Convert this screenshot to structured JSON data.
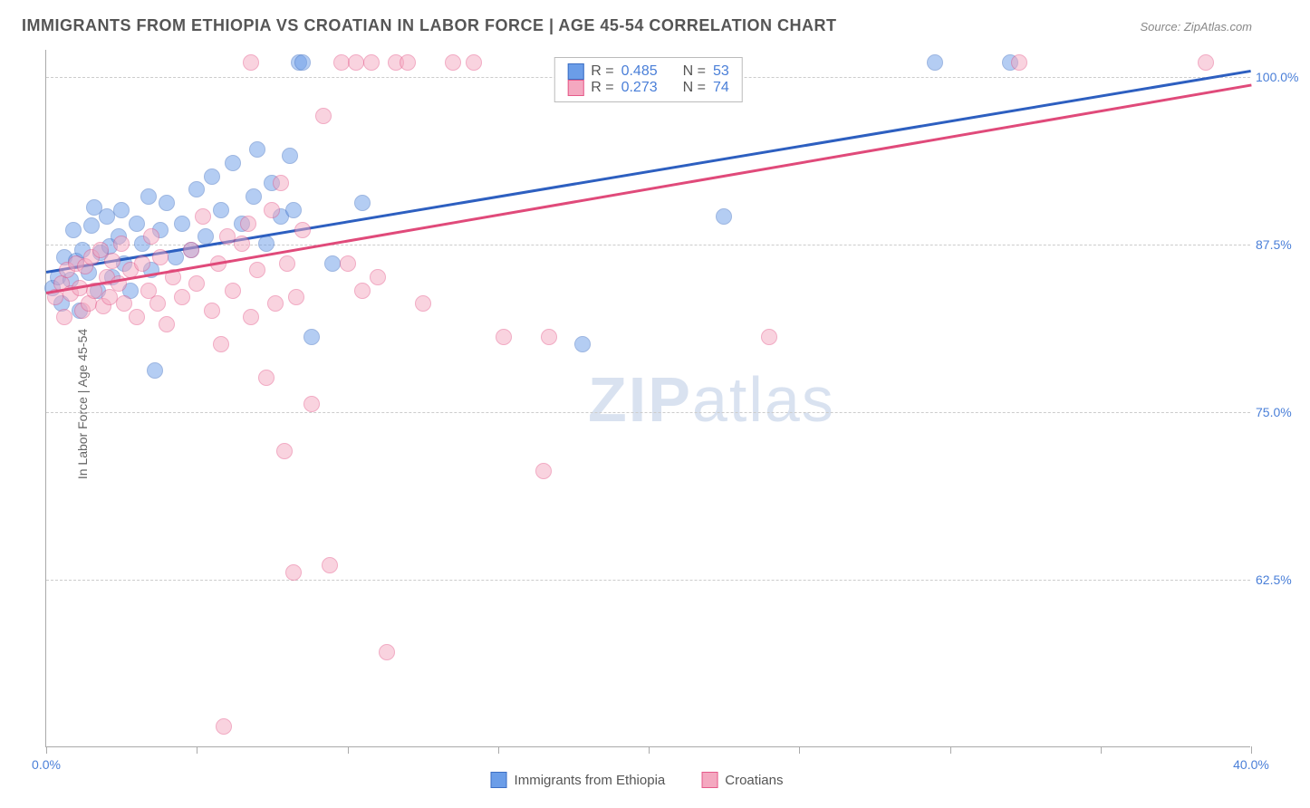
{
  "title": "IMMIGRANTS FROM ETHIOPIA VS CROATIAN IN LABOR FORCE | AGE 45-54 CORRELATION CHART",
  "source": "Source: ZipAtlas.com",
  "y_axis_label": "In Labor Force | Age 45-54",
  "watermark": {
    "bold": "ZIP",
    "rest": "atlas"
  },
  "chart": {
    "type": "scatter",
    "xlim": [
      0,
      40
    ],
    "ylim": [
      50,
      102
    ],
    "x_ticks": [
      0,
      5,
      10,
      15,
      20,
      25,
      30,
      35,
      40
    ],
    "x_tick_labels": {
      "0": "0.0%",
      "40": "40.0%"
    },
    "y_ticks": [
      62.5,
      75.0,
      87.5,
      100.0
    ],
    "y_tick_labels": [
      "62.5%",
      "75.0%",
      "87.5%",
      "100.0%"
    ],
    "grid_color": "#cccccc",
    "background_color": "#ffffff",
    "point_radius": 9,
    "point_opacity": 0.5,
    "series": [
      {
        "name": "Immigrants from Ethiopia",
        "color": "#6b9de8",
        "stroke": "#3d6fc4",
        "R": "0.485",
        "N": "53",
        "trend": {
          "x1": 0,
          "y1": 85.5,
          "x2": 40,
          "y2": 100.5,
          "color": "#2d5fc0"
        },
        "points": [
          [
            0.2,
            84.2
          ],
          [
            0.4,
            85.0
          ],
          [
            0.5,
            83.0
          ],
          [
            0.6,
            86.5
          ],
          [
            0.8,
            84.8
          ],
          [
            0.9,
            88.5
          ],
          [
            1.0,
            86.2
          ],
          [
            1.1,
            82.5
          ],
          [
            1.2,
            87.0
          ],
          [
            1.4,
            85.3
          ],
          [
            1.5,
            88.8
          ],
          [
            1.6,
            90.2
          ],
          [
            1.7,
            84.0
          ],
          [
            1.8,
            86.8
          ],
          [
            2.0,
            89.5
          ],
          [
            2.1,
            87.3
          ],
          [
            2.2,
            85.0
          ],
          [
            2.4,
            88.0
          ],
          [
            2.5,
            90.0
          ],
          [
            2.6,
            86.0
          ],
          [
            2.8,
            84.0
          ],
          [
            3.0,
            89.0
          ],
          [
            3.2,
            87.5
          ],
          [
            3.4,
            91.0
          ],
          [
            3.5,
            85.5
          ],
          [
            3.6,
            78.0
          ],
          [
            3.8,
            88.5
          ],
          [
            4.0,
            90.5
          ],
          [
            4.3,
            86.5
          ],
          [
            4.5,
            89.0
          ],
          [
            4.8,
            87.0
          ],
          [
            5.0,
            91.5
          ],
          [
            5.3,
            88.0
          ],
          [
            5.5,
            92.5
          ],
          [
            5.8,
            90.0
          ],
          [
            6.2,
            93.5
          ],
          [
            6.5,
            89.0
          ],
          [
            6.9,
            91.0
          ],
          [
            7.0,
            94.5
          ],
          [
            7.3,
            87.5
          ],
          [
            7.5,
            92.0
          ],
          [
            7.8,
            89.5
          ],
          [
            8.1,
            94.0
          ],
          [
            8.2,
            90.0
          ],
          [
            8.4,
            101.0
          ],
          [
            8.5,
            101.0
          ],
          [
            8.8,
            80.5
          ],
          [
            9.5,
            86.0
          ],
          [
            10.5,
            90.5
          ],
          [
            17.8,
            80.0
          ],
          [
            22.5,
            89.5
          ],
          [
            29.5,
            101.0
          ],
          [
            32.0,
            101.0
          ]
        ]
      },
      {
        "name": "Croatians",
        "color": "#f4a8c0",
        "stroke": "#e55a8a",
        "R": "0.273",
        "N": "74",
        "trend": {
          "x1": 0,
          "y1": 84.0,
          "x2": 40,
          "y2": 99.5,
          "color": "#e04a7a"
        },
        "points": [
          [
            0.3,
            83.5
          ],
          [
            0.5,
            84.5
          ],
          [
            0.6,
            82.0
          ],
          [
            0.7,
            85.5
          ],
          [
            0.8,
            83.8
          ],
          [
            1.0,
            86.0
          ],
          [
            1.1,
            84.2
          ],
          [
            1.2,
            82.5
          ],
          [
            1.3,
            85.8
          ],
          [
            1.4,
            83.0
          ],
          [
            1.5,
            86.5
          ],
          [
            1.6,
            84.0
          ],
          [
            1.8,
            87.0
          ],
          [
            1.9,
            82.8
          ],
          [
            2.0,
            85.0
          ],
          [
            2.1,
            83.5
          ],
          [
            2.2,
            86.2
          ],
          [
            2.4,
            84.5
          ],
          [
            2.5,
            87.5
          ],
          [
            2.6,
            83.0
          ],
          [
            2.8,
            85.5
          ],
          [
            3.0,
            82.0
          ],
          [
            3.2,
            86.0
          ],
          [
            3.4,
            84.0
          ],
          [
            3.5,
            88.0
          ],
          [
            3.7,
            83.0
          ],
          [
            3.8,
            86.5
          ],
          [
            4.0,
            81.5
          ],
          [
            4.2,
            85.0
          ],
          [
            4.5,
            83.5
          ],
          [
            4.8,
            87.0
          ],
          [
            5.0,
            84.5
          ],
          [
            5.2,
            89.5
          ],
          [
            5.5,
            82.5
          ],
          [
            5.7,
            86.0
          ],
          [
            5.8,
            80.0
          ],
          [
            5.9,
            51.5
          ],
          [
            6.0,
            88.0
          ],
          [
            6.2,
            84.0
          ],
          [
            6.5,
            87.5
          ],
          [
            6.7,
            89.0
          ],
          [
            6.8,
            82.0
          ],
          [
            6.8,
            101.0
          ],
          [
            7.0,
            85.5
          ],
          [
            7.3,
            77.5
          ],
          [
            7.5,
            90.0
          ],
          [
            7.6,
            83.0
          ],
          [
            7.8,
            92.0
          ],
          [
            7.9,
            72.0
          ],
          [
            8.0,
            86.0
          ],
          [
            8.2,
            63.0
          ],
          [
            8.3,
            83.5
          ],
          [
            8.5,
            88.5
          ],
          [
            8.8,
            75.5
          ],
          [
            9.2,
            97.0
          ],
          [
            9.4,
            63.5
          ],
          [
            9.8,
            101.0
          ],
          [
            10.0,
            86.0
          ],
          [
            10.3,
            101.0
          ],
          [
            10.5,
            84.0
          ],
          [
            10.8,
            101.0
          ],
          [
            11.0,
            85.0
          ],
          [
            11.3,
            57.0
          ],
          [
            11.6,
            101.0
          ],
          [
            12.0,
            101.0
          ],
          [
            12.5,
            83.0
          ],
          [
            13.5,
            101.0
          ],
          [
            14.2,
            101.0
          ],
          [
            15.2,
            80.5
          ],
          [
            16.5,
            70.5
          ],
          [
            16.7,
            80.5
          ],
          [
            24.0,
            80.5
          ],
          [
            32.3,
            101.0
          ],
          [
            38.5,
            101.0
          ]
        ]
      }
    ]
  },
  "stats_box": {
    "r_label": "R =",
    "n_label": "N ="
  },
  "bottom_legend": {
    "items": [
      "Immigrants from Ethiopia",
      "Croatians"
    ]
  }
}
